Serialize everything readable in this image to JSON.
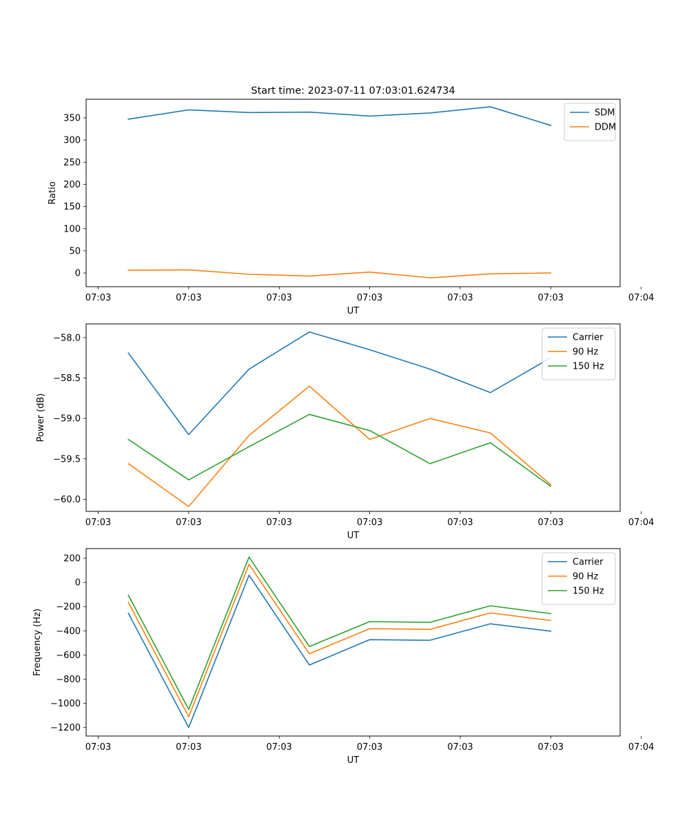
{
  "title": "Start time: 2023-07-11 07:03:01.624734",
  "chart_data": [
    {
      "type": "line",
      "xlabel": "UT",
      "ylabel": "Ratio",
      "x": [
        1,
        2,
        3,
        4,
        5,
        6,
        7,
        8
      ],
      "xlim": [
        0.3,
        9.15
      ],
      "xticks": [
        0.5,
        2.0,
        3.5,
        5.0,
        6.5,
        8.0,
        9.5
      ],
      "xtick_labels": [
        "07:03",
        "07:03",
        "07:03",
        "07:03",
        "07:03",
        "07:03",
        "07:04"
      ],
      "ylim": [
        -31,
        392
      ],
      "yticks": [
        0,
        50,
        100,
        150,
        200,
        250,
        300,
        350
      ],
      "ytick_labels": [
        "0",
        "50",
        "100",
        "150",
        "200",
        "250",
        "300",
        "350"
      ],
      "legend_position": "top-right",
      "series": [
        {
          "name": "SDM",
          "color": "#1f77b4",
          "values": [
            347,
            368,
            362,
            363,
            354,
            361,
            375,
            333
          ]
        },
        {
          "name": "DDM",
          "color": "#ff7f0e",
          "values": [
            6,
            7,
            -3,
            -7,
            2,
            -11,
            -2,
            0
          ]
        }
      ]
    },
    {
      "type": "line",
      "xlabel": "UT",
      "ylabel": "Power (dB)",
      "x": [
        1,
        2,
        3,
        4,
        5,
        6,
        7,
        8
      ],
      "xlim": [
        0.3,
        9.15
      ],
      "xticks": [
        0.5,
        2.0,
        3.5,
        5.0,
        6.5,
        8.0,
        9.5
      ],
      "xtick_labels": [
        "07:03",
        "07:03",
        "07:03",
        "07:03",
        "07:03",
        "07:03",
        "07:04"
      ],
      "ylim": [
        -60.15,
        -57.83
      ],
      "yticks": [
        -60.0,
        -59.5,
        -59.0,
        -58.5,
        -58.0
      ],
      "ytick_labels": [
        "−60.0",
        "−59.5",
        "−59.0",
        "−58.5",
        "−58.0"
      ],
      "legend_position": "top-right",
      "series": [
        {
          "name": "Carrier",
          "color": "#1f77b4",
          "values": [
            -58.19,
            -59.2,
            -58.39,
            -57.93,
            -58.15,
            -58.39,
            -58.68,
            -58.25
          ]
        },
        {
          "name": "90 Hz",
          "color": "#ff7f0e",
          "values": [
            -59.56,
            -60.09,
            -59.21,
            -58.6,
            -59.26,
            -59.0,
            -59.18,
            -59.82
          ]
        },
        {
          "name": "150 Hz",
          "color": "#2ca02c",
          "values": [
            -59.26,
            -59.76,
            -59.35,
            -58.95,
            -59.15,
            -59.56,
            -59.3,
            -59.84
          ]
        }
      ]
    },
    {
      "type": "line",
      "xlabel": "UT",
      "ylabel": "Frequency (Hz)",
      "x": [
        1,
        2,
        3,
        4,
        5,
        6,
        7,
        8
      ],
      "xlim": [
        0.3,
        9.15
      ],
      "xticks": [
        0.5,
        2.0,
        3.5,
        5.0,
        6.5,
        8.0,
        9.5
      ],
      "xtick_labels": [
        "07:03",
        "07:03",
        "07:03",
        "07:03",
        "07:03",
        "07:03",
        "07:04"
      ],
      "ylim": [
        -1270,
        280
      ],
      "yticks": [
        -1200,
        -1000,
        -800,
        -600,
        -400,
        -200,
        0,
        200
      ],
      "ytick_labels": [
        "−1200",
        "−1000",
        "−800",
        "−600",
        "−400",
        "−200",
        "0",
        "200"
      ],
      "legend_position": "top-right",
      "series": [
        {
          "name": "Carrier",
          "color": "#1f77b4",
          "values": [
            -255,
            -1200,
            60,
            -683,
            -473,
            -478,
            -342,
            -403
          ]
        },
        {
          "name": "90 Hz",
          "color": "#ff7f0e",
          "values": [
            -165,
            -1110,
            150,
            -590,
            -382,
            -388,
            -252,
            -315
          ]
        },
        {
          "name": "150 Hz",
          "color": "#2ca02c",
          "values": [
            -105,
            -1050,
            210,
            -530,
            -324,
            -330,
            -193,
            -258
          ]
        }
      ]
    }
  ]
}
